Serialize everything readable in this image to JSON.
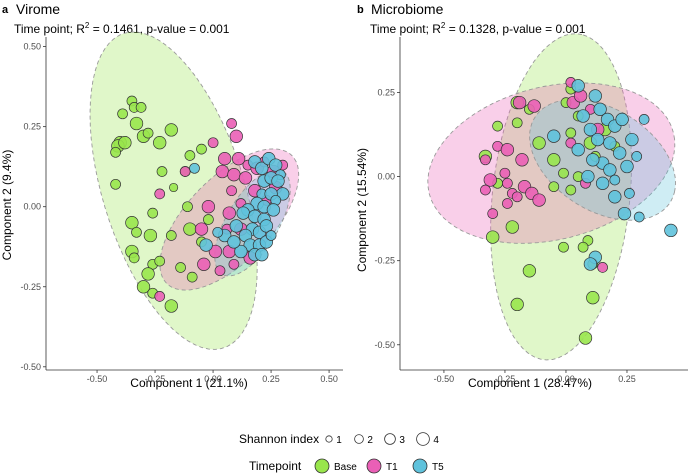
{
  "figure": {
    "legend": {
      "size_title": "Shannon index",
      "size_labels": [
        "1",
        "2",
        "3",
        "4"
      ],
      "color_title": "Timepoint",
      "groups": [
        "Base",
        "T1",
        "T5"
      ]
    },
    "colors": {
      "Base": "#99e64c",
      "T1": "#ea5fb6",
      "T5": "#5fc2dc",
      "point_stroke": "#333333",
      "ellipse_stroke": "#999999",
      "axis": "#333333",
      "text": "#1a1a1a"
    }
  },
  "chart_data": [
    {
      "type": "scatter",
      "panel_letter": "a",
      "title": "Virome",
      "stat_prefix": "Time point; R",
      "stat_sup": "2",
      "stat_suffix": " = 0.1461, p-value = 0.001",
      "xlabel": "Component 1 (21.1%)",
      "ylabel": "Component 2 (9.4%)",
      "xlim": [
        -0.72,
        0.56
      ],
      "ylim": [
        -0.51,
        0.53
      ],
      "xticks": [
        -0.5,
        -0.25,
        0.0,
        0.25,
        0.5
      ],
      "xtick_labels": [
        "-0.50",
        "-0.25",
        "0.00",
        "0.25",
        "0.50"
      ],
      "yticks": [
        -0.5,
        -0.25,
        0.0,
        0.25,
        0.5
      ],
      "ytick_labels": [
        "-0.50",
        "-0.25",
        "0.00",
        "0.25",
        "0.50"
      ],
      "ellipses": [
        {
          "group": "Base",
          "cx": -0.17,
          "cy": 0.05,
          "rx": 0.54,
          "ry": 0.29,
          "angle": -62
        },
        {
          "group": "T1",
          "cx": 0.07,
          "cy": -0.04,
          "rx": 0.34,
          "ry": 0.15,
          "angle": 32
        },
        {
          "group": "T5",
          "cx": 0.17,
          "cy": -0.05,
          "rx": 0.21,
          "ry": 0.1,
          "angle": 46
        }
      ],
      "series": [
        {
          "name": "Base",
          "points": [
            [
              -0.35,
              0.33
            ],
            [
              -0.39,
              0.29
            ],
            [
              -0.34,
              0.31
            ],
            [
              -0.31,
              0.31
            ],
            [
              -0.33,
              0.26
            ],
            [
              -0.3,
              0.22
            ],
            [
              -0.28,
              0.23
            ],
            [
              -0.4,
              0.2
            ],
            [
              -0.41,
              0.19
            ],
            [
              -0.38,
              0.2
            ],
            [
              -0.42,
              0.17
            ],
            [
              -0.23,
              0.2
            ],
            [
              -0.18,
              0.24
            ],
            [
              -0.1,
              0.16
            ],
            [
              -0.05,
              0.18
            ],
            [
              -0.12,
              0.11
            ],
            [
              -0.22,
              0.11
            ],
            [
              -0.17,
              0.06
            ],
            [
              -0.42,
              0.07
            ],
            [
              -0.26,
              -0.02
            ],
            [
              -0.11,
              0.0
            ],
            [
              -0.35,
              -0.05
            ],
            [
              -0.33,
              -0.08
            ],
            [
              -0.27,
              -0.09
            ],
            [
              -0.18,
              -0.09
            ],
            [
              -0.1,
              -0.07
            ],
            [
              -0.02,
              -0.04
            ],
            [
              -0.05,
              -0.11
            ],
            [
              -0.35,
              -0.14
            ],
            [
              -0.34,
              -0.16
            ],
            [
              -0.26,
              -0.18
            ],
            [
              -0.28,
              -0.21
            ],
            [
              -0.23,
              -0.17
            ],
            [
              -0.14,
              -0.19
            ],
            [
              -0.09,
              -0.22
            ],
            [
              -0.3,
              -0.25
            ],
            [
              -0.26,
              -0.27
            ],
            [
              -0.18,
              -0.31
            ]
          ],
          "sizes": [
            2,
            2,
            2,
            2,
            3,
            3,
            2,
            3,
            3,
            3,
            2,
            3,
            3,
            2,
            2,
            2,
            2,
            1,
            2,
            2,
            2,
            3,
            2,
            3,
            2,
            3,
            2,
            2,
            3,
            2,
            2,
            3,
            2,
            2,
            2,
            3,
            2,
            3
          ]
        },
        {
          "name": "T1",
          "points": [
            [
              0.08,
              0.26
            ],
            [
              0.1,
              0.22
            ],
            [
              0.0,
              0.2
            ],
            [
              0.05,
              0.15
            ],
            [
              0.11,
              0.15
            ],
            [
              0.15,
              0.13
            ],
            [
              0.19,
              0.12
            ],
            [
              0.22,
              0.14
            ],
            [
              0.26,
              0.11
            ],
            [
              0.3,
              0.13
            ],
            [
              -0.23,
              0.04
            ],
            [
              -0.12,
              0.11
            ],
            [
              0.04,
              0.11
            ],
            [
              0.09,
              0.1
            ],
            [
              0.14,
              0.09
            ],
            [
              0.08,
              0.05
            ],
            [
              0.18,
              0.05
            ],
            [
              0.23,
              0.02
            ],
            [
              0.27,
              0.06
            ],
            [
              0.12,
              0.01
            ],
            [
              0.07,
              -0.02
            ],
            [
              -0.02,
              0.0
            ],
            [
              -0.05,
              -0.07
            ],
            [
              0.06,
              -0.07
            ],
            [
              0.12,
              -0.07
            ],
            [
              0.01,
              -0.14
            ],
            [
              -0.04,
              -0.18
            ],
            [
              0.07,
              -0.14
            ],
            [
              0.09,
              -0.18
            ],
            [
              0.16,
              -0.16
            ],
            [
              -0.23,
              -0.28
            ],
            [
              0.03,
              -0.2
            ]
          ],
          "sizes": [
            2,
            3,
            2,
            3,
            3,
            2,
            3,
            2,
            3,
            2,
            2,
            2,
            3,
            3,
            3,
            2,
            3,
            2,
            3,
            2,
            3,
            3,
            3,
            2,
            3,
            3,
            3,
            3,
            2,
            3,
            2,
            2
          ]
        },
        {
          "name": "T5",
          "points": [
            [
              0.18,
              0.14
            ],
            [
              0.21,
              0.12
            ],
            [
              0.24,
              0.15
            ],
            [
              0.27,
              0.13
            ],
            [
              0.29,
              0.1
            ],
            [
              0.22,
              0.08
            ],
            [
              0.25,
              0.09
            ],
            [
              0.28,
              0.08
            ],
            [
              0.3,
              0.04
            ],
            [
              0.21,
              0.04
            ],
            [
              0.25,
              0.04
            ],
            [
              0.19,
              0.01
            ],
            [
              0.22,
              0.0
            ],
            [
              0.27,
              0.02
            ],
            [
              0.15,
              -0.01
            ],
            [
              0.13,
              -0.02
            ],
            [
              0.18,
              -0.03
            ],
            [
              0.22,
              -0.04
            ],
            [
              0.26,
              -0.01
            ],
            [
              0.17,
              -0.07
            ],
            [
              0.2,
              -0.08
            ],
            [
              0.23,
              -0.06
            ],
            [
              0.1,
              -0.06
            ],
            [
              0.14,
              -0.09
            ],
            [
              0.16,
              -0.12
            ],
            [
              0.2,
              -0.12
            ],
            [
              0.23,
              -0.11
            ],
            [
              0.12,
              -0.14
            ],
            [
              0.18,
              -0.15
            ],
            [
              0.05,
              -0.09
            ],
            [
              0.02,
              -0.08
            ],
            [
              0.09,
              -0.11
            ],
            [
              0.21,
              -0.15
            ],
            [
              0.25,
              -0.09
            ],
            [
              -0.08,
              0.12
            ],
            [
              -0.03,
              -0.12
            ]
          ],
          "sizes": [
            3,
            3,
            3,
            3,
            2,
            3,
            3,
            3,
            3,
            2,
            3,
            3,
            3,
            2,
            3,
            3,
            3,
            3,
            3,
            3,
            3,
            3,
            3,
            3,
            3,
            3,
            3,
            3,
            3,
            3,
            2,
            3,
            3,
            2,
            2,
            3
          ]
        }
      ]
    },
    {
      "type": "scatter",
      "panel_letter": "b",
      "title": "Microbiome",
      "stat_prefix": "Time point; R",
      "stat_sup": "2",
      "stat_suffix": " = 0.1328, p-value = 0.001",
      "xlabel": "Component 1 (28.47%)",
      "ylabel": "Component 2 (15.54%)",
      "xlim": [
        -0.68,
        0.5
      ],
      "ylim": [
        -0.575,
        0.415
      ],
      "xticks": [
        -0.5,
        -0.25,
        0.0,
        0.25
      ],
      "xtick_labels": [
        "-0.50",
        "-0.25",
        "0.00",
        "0.25"
      ],
      "yticks": [
        -0.5,
        -0.25,
        0.0,
        0.25
      ],
      "ytick_labels": [
        "-0.50",
        "-0.25",
        "0.00",
        "0.25"
      ],
      "ellipses": [
        {
          "group": "Base",
          "cx": -0.02,
          "cy": -0.06,
          "rx": 0.49,
          "ry": 0.28,
          "angle": 80
        },
        {
          "group": "T1",
          "cx": -0.06,
          "cy": 0.04,
          "rx": 0.51,
          "ry": 0.23,
          "angle": 8
        },
        {
          "group": "T5",
          "cx": 0.15,
          "cy": 0.05,
          "rx": 0.31,
          "ry": 0.16,
          "angle": -18
        }
      ],
      "series": [
        {
          "name": "Base",
          "points": [
            [
              -0.2,
              0.22
            ],
            [
              -0.28,
              0.15
            ],
            [
              -0.2,
              0.16
            ],
            [
              -0.33,
              0.06
            ],
            [
              -0.28,
              -0.02
            ],
            [
              -0.3,
              -0.18
            ],
            [
              -0.22,
              -0.15
            ],
            [
              -0.15,
              0.2
            ],
            [
              -0.11,
              0.1
            ],
            [
              -0.05,
              0.05
            ],
            [
              -0.05,
              -0.03
            ],
            [
              -0.01,
              0.01
            ],
            [
              0.02,
              0.13
            ],
            [
              0.02,
              -0.04
            ],
            [
              0.05,
              0.0
            ],
            [
              0.0,
              0.22
            ],
            [
              0.02,
              0.26
            ],
            [
              0.05,
              0.18
            ],
            [
              0.1,
              0.1
            ],
            [
              0.12,
              0.06
            ],
            [
              0.16,
              0.14
            ],
            [
              0.2,
              0.09
            ],
            [
              -0.01,
              -0.21
            ],
            [
              -0.15,
              -0.28
            ],
            [
              0.09,
              -0.19
            ],
            [
              0.07,
              -0.21
            ],
            [
              0.11,
              -0.26
            ],
            [
              -0.2,
              -0.38
            ],
            [
              0.11,
              -0.36
            ],
            [
              0.08,
              -0.48
            ]
          ],
          "sizes": [
            3,
            2,
            2,
            3,
            2,
            3,
            3,
            2,
            3,
            3,
            2,
            2,
            2,
            2,
            2,
            2,
            2,
            2,
            3,
            2,
            3,
            2,
            2,
            3,
            2,
            2,
            2,
            3,
            3,
            3
          ]
        },
        {
          "name": "T1",
          "points": [
            [
              -0.19,
              0.22
            ],
            [
              -0.13,
              0.21
            ],
            [
              -0.28,
              0.09
            ],
            [
              -0.33,
              0.05
            ],
            [
              -0.24,
              0.08
            ],
            [
              -0.18,
              0.05
            ],
            [
              -0.25,
              0.01
            ],
            [
              -0.31,
              -0.01
            ],
            [
              -0.24,
              -0.02
            ],
            [
              -0.17,
              -0.03
            ],
            [
              -0.22,
              -0.05
            ],
            [
              -0.2,
              -0.06
            ],
            [
              -0.14,
              -0.05
            ],
            [
              -0.11,
              -0.07
            ],
            [
              -0.33,
              -0.04
            ],
            [
              -0.3,
              -0.11
            ],
            [
              -0.24,
              -0.08
            ],
            [
              0.02,
              0.1
            ],
            [
              0.03,
              0.22
            ],
            [
              0.06,
              0.24
            ],
            [
              0.1,
              0.2
            ],
            [
              0.13,
              0.14
            ],
            [
              0.08,
              -0.02
            ],
            [
              0.15,
              -0.27
            ],
            [
              0.02,
              0.28
            ]
          ],
          "sizes": [
            3,
            3,
            2,
            2,
            3,
            3,
            2,
            3,
            2,
            3,
            2,
            2,
            3,
            3,
            2,
            2,
            2,
            2,
            3,
            3,
            2,
            3,
            2,
            2,
            2
          ]
        },
        {
          "name": "T5",
          "points": [
            [
              0.05,
              0.27
            ],
            [
              0.12,
              0.24
            ],
            [
              0.14,
              0.2
            ],
            [
              0.17,
              0.17
            ],
            [
              0.2,
              0.15
            ],
            [
              0.23,
              0.17
            ],
            [
              0.07,
              0.18
            ],
            [
              0.1,
              0.14
            ],
            [
              0.13,
              0.11
            ],
            [
              0.18,
              0.1
            ],
            [
              0.22,
              0.07
            ],
            [
              0.25,
              0.03
            ],
            [
              0.29,
              0.06
            ],
            [
              0.15,
              0.04
            ],
            [
              0.18,
              0.02
            ],
            [
              0.2,
              -0.01
            ],
            [
              0.11,
              0.05
            ],
            [
              0.15,
              -0.02
            ],
            [
              0.09,
              0.0
            ],
            [
              0.05,
              0.08
            ],
            [
              0.26,
              -0.05
            ],
            [
              0.2,
              -0.06
            ],
            [
              0.24,
              -0.11
            ],
            [
              0.3,
              -0.12
            ],
            [
              0.43,
              -0.16
            ],
            [
              0.12,
              -0.24
            ],
            [
              0.1,
              -0.26
            ],
            [
              -0.05,
              0.12
            ],
            [
              0.32,
              0.17
            ],
            [
              0.27,
              0.11
            ]
          ],
          "sizes": [
            3,
            3,
            3,
            3,
            3,
            3,
            3,
            3,
            3,
            3,
            3,
            3,
            2,
            3,
            3,
            2,
            3,
            3,
            3,
            3,
            2,
            3,
            3,
            2,
            3,
            3,
            3,
            3,
            2,
            3
          ]
        }
      ]
    }
  ]
}
